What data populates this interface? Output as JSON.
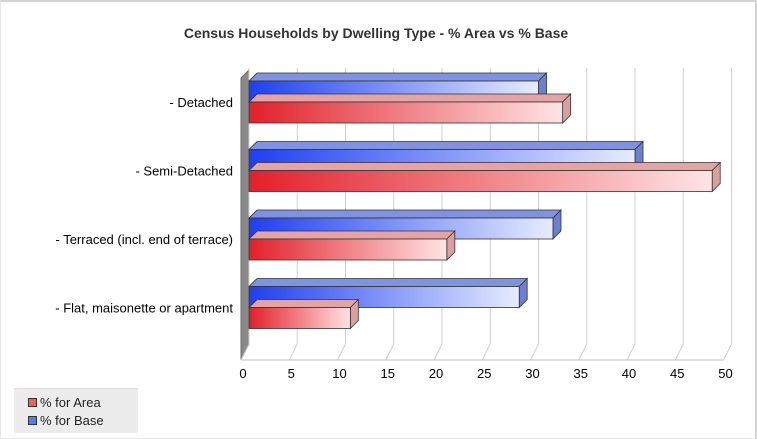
{
  "chart_data": {
    "type": "bar",
    "orientation": "horizontal",
    "title": "Census Households by Dwelling Type - % Area vs % Base",
    "categories": [
      "- Detached",
      "- Semi-Detached",
      "- Terraced (incl. end of terrace)",
      "- Flat, maisonette or apartment"
    ],
    "series": [
      {
        "name": "% for Base",
        "values": [
          30,
          40,
          31.5,
          28
        ],
        "color": "#2b4cf0"
      },
      {
        "name": "% for Area",
        "values": [
          32.5,
          48,
          20.5,
          10.5
        ],
        "color": "#e8292f"
      }
    ],
    "xlim": [
      0,
      50
    ],
    "xticks": [
      0,
      5,
      10,
      15,
      20,
      25,
      30,
      35,
      40,
      45,
      50
    ],
    "grid": true,
    "legend_position": "bottom-left"
  },
  "legend": {
    "items": [
      {
        "label": "% for Area",
        "color": "#e8292f"
      },
      {
        "label": "% for Base",
        "color": "#2b4cf0"
      }
    ]
  }
}
